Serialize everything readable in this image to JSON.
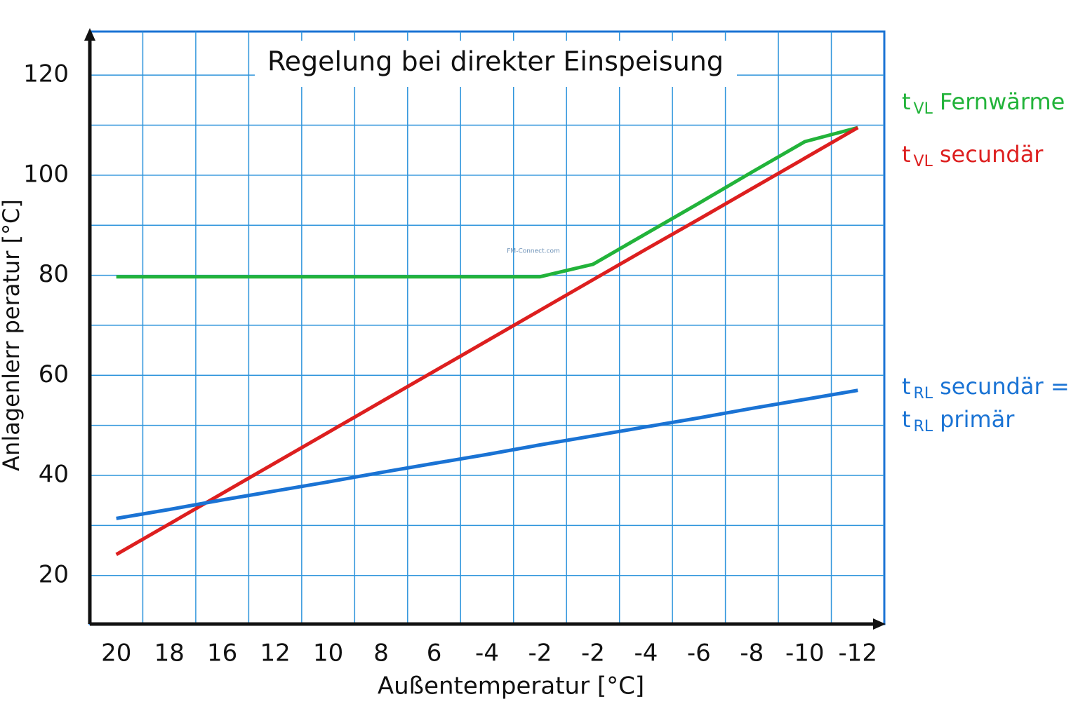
{
  "chart_data": {
    "type": "line",
    "title": "Regelung bei direkter Einspeisung",
    "x_label": "Außentemperatur  [°C]",
    "y_label": "Anlagenlerr peratur [°C]",
    "watermark": "FM-Connect.com",
    "categories": [
      "20",
      "18",
      "16",
      "12",
      "10",
      "8",
      "6",
      "-4",
      "-2",
      "-2",
      "-4",
      "-6",
      "-8",
      "-10",
      "-12"
    ],
    "ylim": [
      10.3,
      128.7
    ],
    "yticks": [
      20,
      40,
      60,
      80,
      100,
      120
    ],
    "yminor_ticks": [
      30,
      50,
      70,
      90,
      110
    ],
    "grid": true,
    "series": [
      {
        "name": [
          {
            "main": "t",
            "sub": "VL",
            "text": "Fernwärme"
          }
        ],
        "color": "#22b33a",
        "values": [
          79.7,
          79.7,
          79.7,
          79.7,
          79.7,
          79.7,
          79.7,
          79.7,
          79.7,
          82.2,
          88.3,
          94.4,
          100.6,
          106.7,
          109.5
        ]
      },
      {
        "name": [
          {
            "main": "t",
            "sub": "VL",
            "text": "secundär"
          }
        ],
        "color": "#dd1f1f",
        "values": [
          24.2,
          30.3,
          36.4,
          42.5,
          48.6,
          54.7,
          60.8,
          66.9,
          73.0,
          79.1,
          85.2,
          91.2,
          97.3,
          103.4,
          109.5
        ]
      },
      {
        "name": [
          {
            "main": "t",
            "sub": "RL",
            "text": "secundär ="
          },
          {
            "main": "t",
            "sub": "RL",
            "text": "primär"
          }
        ],
        "color": "#1a73d4",
        "values": [
          31.4,
          33.2,
          35.1,
          36.9,
          38.7,
          40.6,
          42.4,
          44.2,
          46.1,
          47.9,
          49.7,
          51.5,
          53.4,
          55.2,
          57.0
        ]
      }
    ]
  }
}
